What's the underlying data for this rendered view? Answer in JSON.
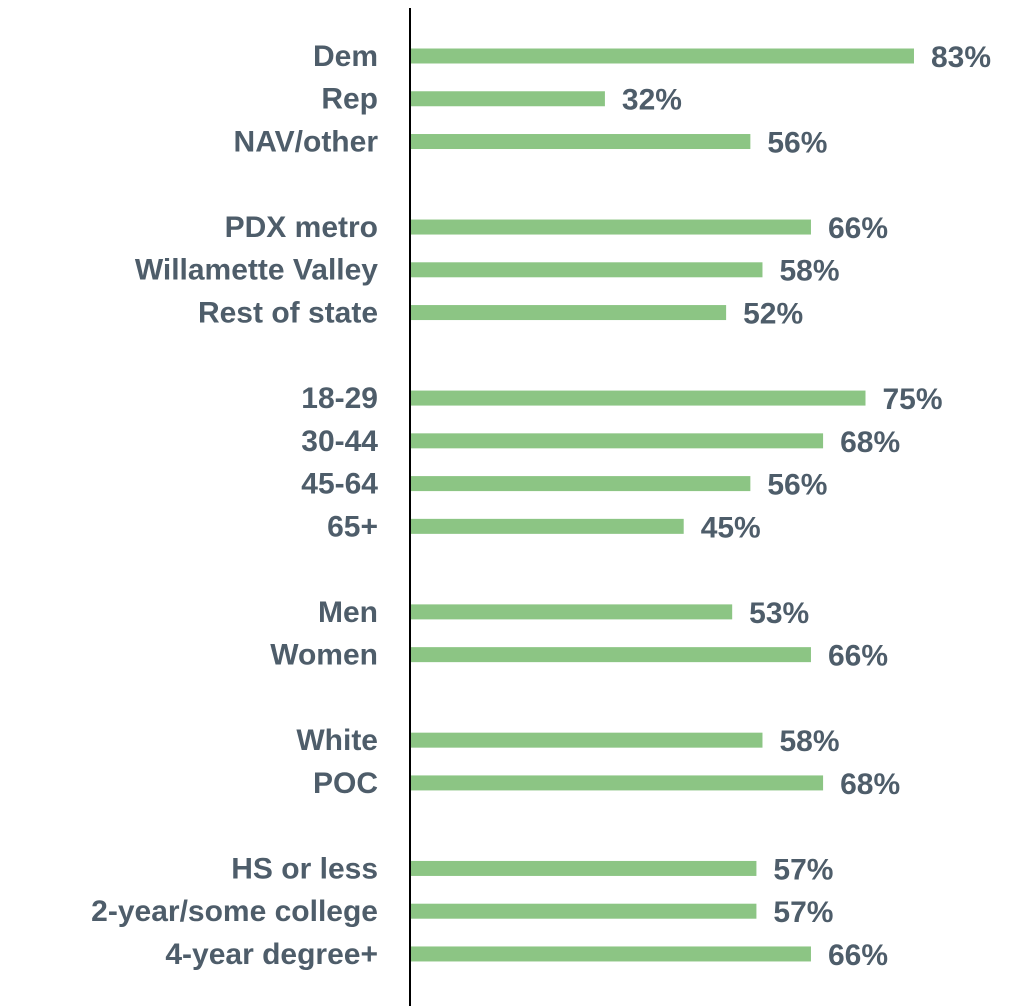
{
  "chart_data": {
    "type": "hbar",
    "categories": [
      "Dem",
      "Rep",
      "NAV/other",
      null,
      "PDX metro",
      "Willamette Valley",
      "Rest of state",
      null,
      "18-29",
      "30-44",
      "45-64",
      "65+",
      null,
      "Men",
      "Women",
      null,
      "White",
      "POC",
      null,
      "HS or less",
      "2-year/some college",
      "4-year degree+"
    ],
    "values": [
      83,
      32,
      56,
      null,
      66,
      58,
      52,
      null,
      75,
      68,
      56,
      45,
      null,
      53,
      66,
      null,
      58,
      68,
      null,
      57,
      57,
      66
    ],
    "value_labels": [
      "83%",
      "32%",
      "56%",
      null,
      "66%",
      "58%",
      "52%",
      null,
      "75%",
      "68%",
      "56%",
      "45%",
      null,
      "53%",
      "66%",
      null,
      "58%",
      "68%",
      null,
      "57%",
      "57%",
      "66%"
    ],
    "color": "#8cc584",
    "xlim": [
      0,
      100
    ]
  }
}
